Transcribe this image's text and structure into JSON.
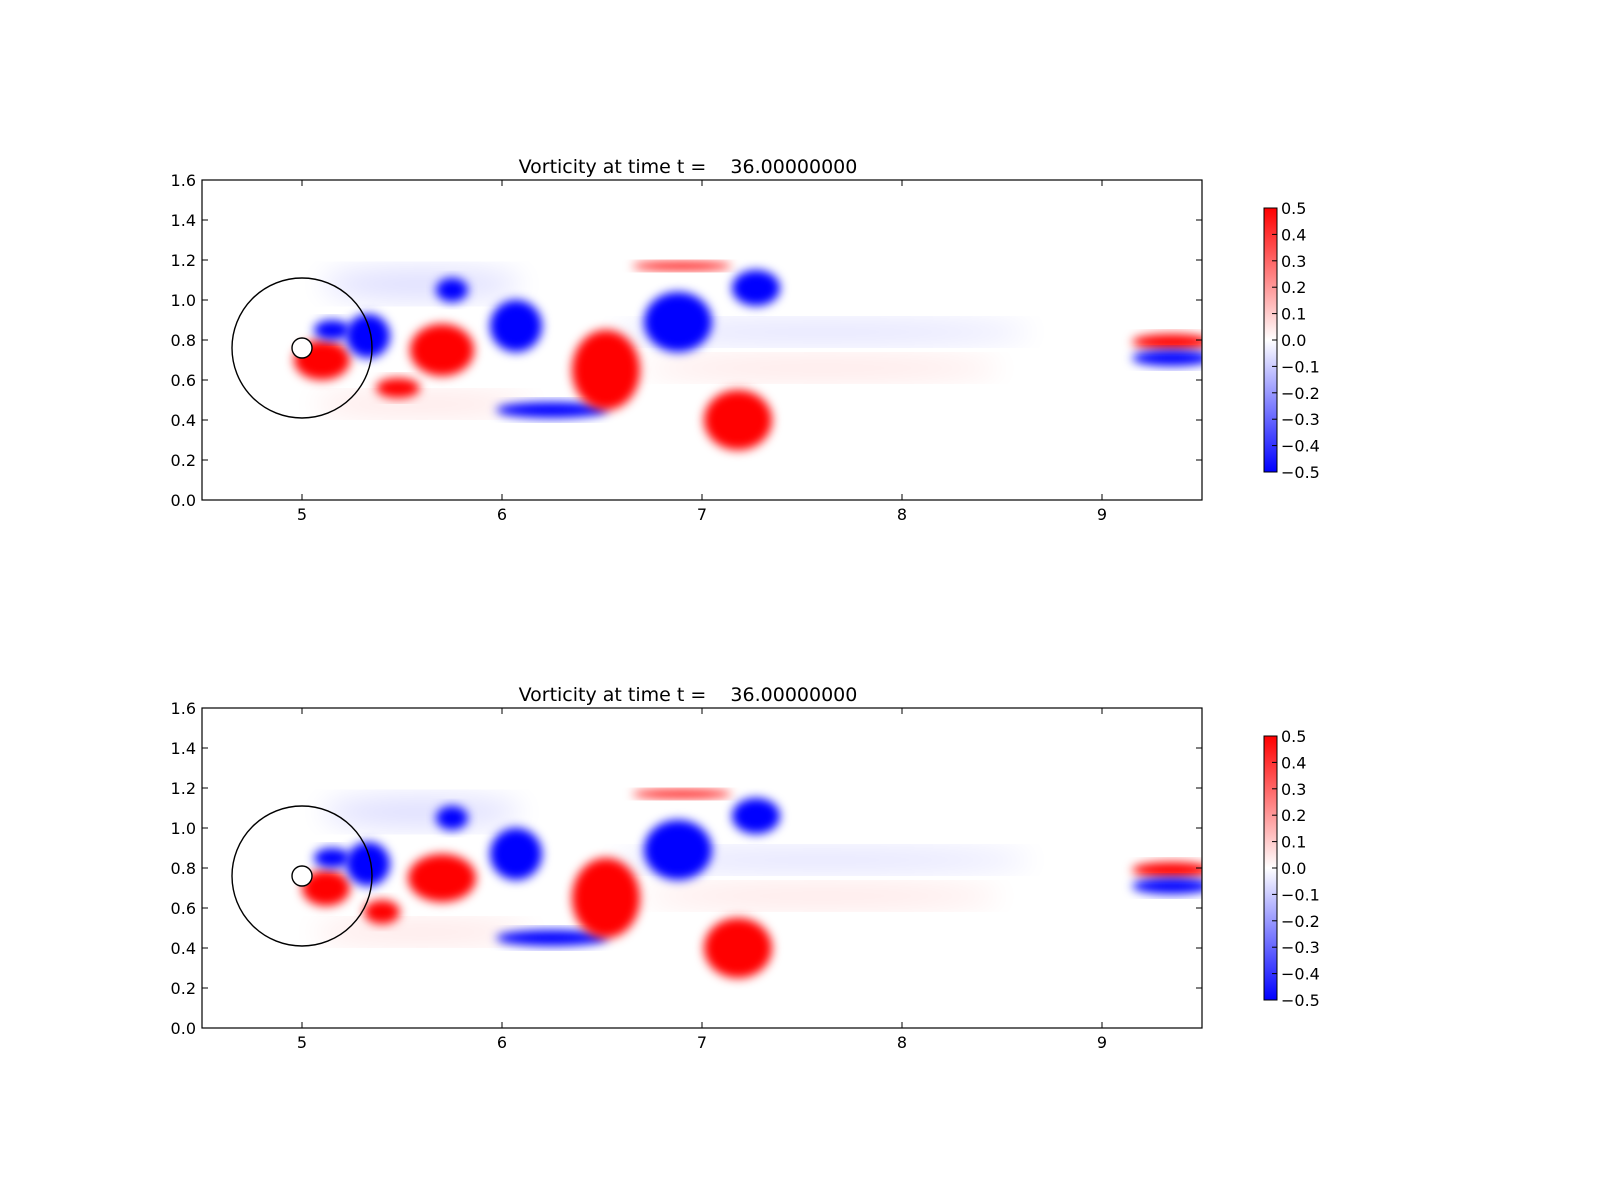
{
  "chart_data": [
    {
      "type": "heatmap",
      "title": "Vorticity at time t =    36.00000000",
      "xlim": [
        4.5,
        9.5
      ],
      "ylim": [
        0.0,
        1.6
      ],
      "xticks": [
        5,
        6,
        7,
        8,
        9
      ],
      "yticks": [
        0.0,
        0.2,
        0.4,
        0.6,
        0.8,
        1.0,
        1.2,
        1.4,
        1.6
      ],
      "colorbar": {
        "range": [
          -0.5,
          0.5
        ],
        "ticks": [
          -0.5,
          -0.4,
          -0.3,
          -0.2,
          -0.1,
          0.0,
          0.1,
          0.2,
          0.3,
          0.4,
          0.5
        ],
        "tick_labels": [
          "−0.5",
          "−0.4",
          "−0.3",
          "−0.2",
          "−0.1",
          "0.0",
          "0.1",
          "0.2",
          "0.3",
          "0.4",
          "0.5"
        ],
        "colormap": "bwr",
        "low_color": "#0000ff",
        "mid_color": "#ffffff",
        "high_color": "#ff0000"
      },
      "grid": false,
      "cylinder": {
        "cx": 5.0,
        "cy": 0.76,
        "r": 0.05
      },
      "boundary_circle": {
        "cx": 5.0,
        "cy": 0.76,
        "r": 0.35
      },
      "vortices": [
        {
          "sign": "pos",
          "x": 5.1,
          "y": 0.7,
          "rx": 0.14,
          "ry": 0.1
        },
        {
          "sign": "neg",
          "x": 5.33,
          "y": 0.82,
          "rx": 0.11,
          "ry": 0.11
        },
        {
          "sign": "neg",
          "x": 5.15,
          "y": 0.85,
          "rx": 0.09,
          "ry": 0.05
        },
        {
          "sign": "pos",
          "x": 5.48,
          "y": 0.56,
          "rx": 0.11,
          "ry": 0.05
        },
        {
          "sign": "pos",
          "x": 5.7,
          "y": 0.75,
          "rx": 0.16,
          "ry": 0.13
        },
        {
          "sign": "neg",
          "x": 5.75,
          "y": 1.05,
          "rx": 0.08,
          "ry": 0.06
        },
        {
          "sign": "neg",
          "x": 6.07,
          "y": 0.87,
          "rx": 0.13,
          "ry": 0.13
        },
        {
          "sign": "neg",
          "x": 6.25,
          "y": 0.45,
          "rx": 0.28,
          "ry": 0.04
        },
        {
          "sign": "pos",
          "x": 6.52,
          "y": 0.65,
          "rx": 0.17,
          "ry": 0.2
        },
        {
          "sign": "neg",
          "x": 6.88,
          "y": 0.89,
          "rx": 0.17,
          "ry": 0.15
        },
        {
          "sign": "neg",
          "x": 7.27,
          "y": 1.06,
          "rx": 0.12,
          "ry": 0.09
        },
        {
          "sign": "pos",
          "x": 7.18,
          "y": 0.4,
          "rx": 0.17,
          "ry": 0.15
        },
        {
          "sign": "pos",
          "x": 6.9,
          "y": 1.17,
          "rx": 0.25,
          "ry": 0.02
        },
        {
          "sign": "pos",
          "x": 9.35,
          "y": 0.79,
          "rx": 0.2,
          "ry": 0.04
        },
        {
          "sign": "neg",
          "x": 9.35,
          "y": 0.71,
          "rx": 0.2,
          "ry": 0.04
        }
      ]
    },
    {
      "type": "heatmap",
      "title": "Vorticity at time t =    36.00000000",
      "xlim": [
        4.5,
        9.5
      ],
      "ylim": [
        0.0,
        1.6
      ],
      "xticks": [
        5,
        6,
        7,
        8,
        9
      ],
      "yticks": [
        0.0,
        0.2,
        0.4,
        0.6,
        0.8,
        1.0,
        1.2,
        1.4,
        1.6
      ],
      "colorbar": {
        "range": [
          -0.5,
          0.5
        ],
        "ticks": [
          -0.5,
          -0.4,
          -0.3,
          -0.2,
          -0.1,
          0.0,
          0.1,
          0.2,
          0.3,
          0.4,
          0.5
        ],
        "tick_labels": [
          "−0.5",
          "−0.4",
          "−0.3",
          "−0.2",
          "−0.1",
          "0.0",
          "0.1",
          "0.2",
          "0.3",
          "0.4",
          "0.5"
        ],
        "colormap": "bwr",
        "low_color": "#0000ff",
        "mid_color": "#ffffff",
        "high_color": "#ff0000"
      },
      "grid": false,
      "cylinder": {
        "cx": 5.0,
        "cy": 0.76,
        "r": 0.05
      },
      "boundary_circle": {
        "cx": 5.0,
        "cy": 0.76,
        "r": 0.35
      },
      "vortices": [
        {
          "sign": "pos",
          "x": 5.12,
          "y": 0.7,
          "rx": 0.12,
          "ry": 0.09
        },
        {
          "sign": "neg",
          "x": 5.33,
          "y": 0.82,
          "rx": 0.11,
          "ry": 0.11
        },
        {
          "sign": "neg",
          "x": 5.15,
          "y": 0.85,
          "rx": 0.09,
          "ry": 0.05
        },
        {
          "sign": "pos",
          "x": 5.4,
          "y": 0.58,
          "rx": 0.09,
          "ry": 0.06
        },
        {
          "sign": "pos",
          "x": 5.7,
          "y": 0.75,
          "rx": 0.17,
          "ry": 0.12
        },
        {
          "sign": "neg",
          "x": 5.75,
          "y": 1.05,
          "rx": 0.08,
          "ry": 0.06
        },
        {
          "sign": "neg",
          "x": 6.07,
          "y": 0.87,
          "rx": 0.13,
          "ry": 0.13
        },
        {
          "sign": "neg",
          "x": 6.25,
          "y": 0.45,
          "rx": 0.28,
          "ry": 0.04
        },
        {
          "sign": "pos",
          "x": 6.52,
          "y": 0.65,
          "rx": 0.17,
          "ry": 0.2
        },
        {
          "sign": "neg",
          "x": 6.88,
          "y": 0.89,
          "rx": 0.17,
          "ry": 0.15
        },
        {
          "sign": "neg",
          "x": 7.27,
          "y": 1.06,
          "rx": 0.12,
          "ry": 0.09
        },
        {
          "sign": "pos",
          "x": 7.18,
          "y": 0.4,
          "rx": 0.17,
          "ry": 0.15
        },
        {
          "sign": "pos",
          "x": 6.9,
          "y": 1.17,
          "rx": 0.25,
          "ry": 0.02
        },
        {
          "sign": "pos",
          "x": 9.35,
          "y": 0.79,
          "rx": 0.2,
          "ry": 0.04
        },
        {
          "sign": "neg",
          "x": 9.35,
          "y": 0.71,
          "rx": 0.2,
          "ry": 0.04
        }
      ]
    }
  ]
}
